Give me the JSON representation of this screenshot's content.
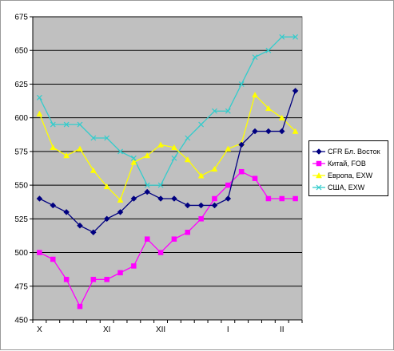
{
  "chart_data": {
    "type": "line",
    "title": "",
    "xlabel": "",
    "ylabel": "",
    "ylim": [
      450,
      675
    ],
    "yticks": [
      450,
      475,
      500,
      525,
      550,
      575,
      600,
      625,
      650,
      675
    ],
    "grid": true,
    "legend_position": "right",
    "plot_background": "#c0c0c0",
    "x_index": [
      1,
      2,
      3,
      4,
      5,
      6,
      7,
      8,
      9,
      10,
      11,
      12,
      13,
      14,
      15,
      16,
      17,
      18,
      19,
      20
    ],
    "month_labels": [
      {
        "label": "X",
        "at": 1
      },
      {
        "label": "XI",
        "at": 6
      },
      {
        "label": "XII",
        "at": 10
      },
      {
        "label": "I",
        "at": 15
      },
      {
        "label": "II",
        "at": 19
      }
    ],
    "series": [
      {
        "name": "CFR Бл. Восток",
        "color": "#000080",
        "marker": "diamond",
        "values": [
          540,
          535,
          530,
          520,
          515,
          525,
          530,
          540,
          545,
          540,
          540,
          535,
          535,
          535,
          540,
          580,
          590,
          590,
          590,
          620
        ]
      },
      {
        "name": "Китай, FOB",
        "color": "#ff00ff",
        "marker": "square",
        "values": [
          500,
          495,
          480,
          460,
          480,
          480,
          485,
          490,
          510,
          500,
          510,
          515,
          525,
          540,
          550,
          560,
          555,
          540,
          540,
          540
        ]
      },
      {
        "name": "Европа, EXW",
        "color": "#ffff00",
        "marker": "triangle",
        "values": [
          603,
          578,
          572,
          577,
          561,
          549,
          539,
          567,
          572,
          580,
          578,
          569,
          557,
          562,
          577,
          581,
          617,
          607,
          600,
          590
        ]
      },
      {
        "name": "США, EXW",
        "color": "#33cccc",
        "marker": "x",
        "values": [
          615,
          595,
          595,
          595,
          585,
          585,
          575,
          570,
          550,
          550,
          570,
          585,
          595,
          605,
          605,
          625,
          645,
          650,
          660,
          660
        ]
      }
    ]
  }
}
